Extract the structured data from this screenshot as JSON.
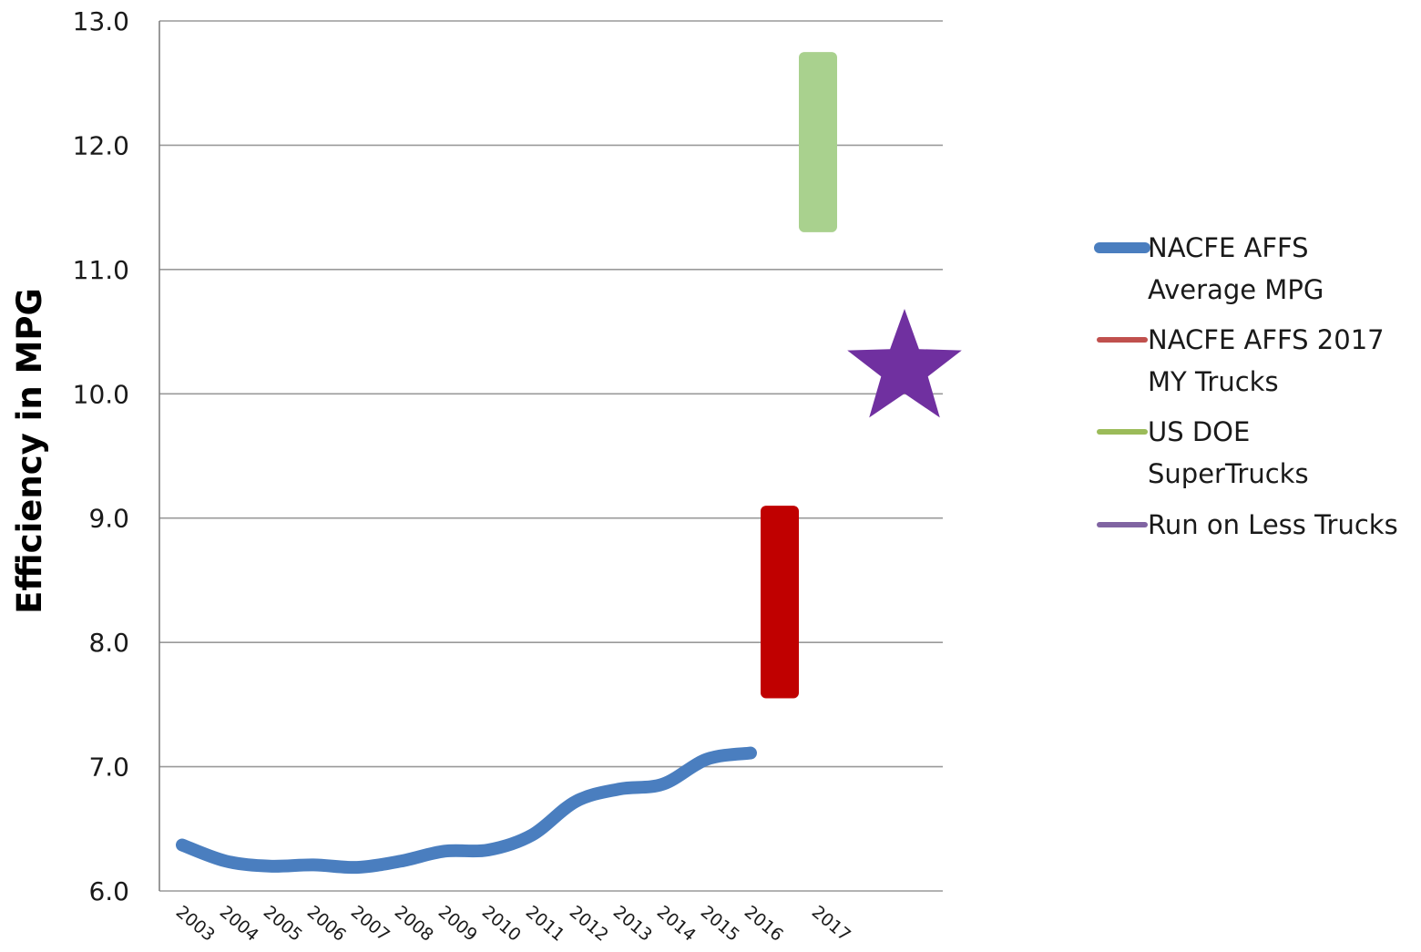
{
  "chart_data": {
    "type": "line",
    "title": "",
    "xlabel": "",
    "ylabel": "Efficiency in MPG",
    "ylim": [
      6.0,
      13.0
    ],
    "yticks": [
      "6.0",
      "7.0",
      "8.0",
      "9.0",
      "10.0",
      "11.0",
      "12.0",
      "13.0"
    ],
    "x_categories": [
      "2003",
      "2004",
      "2005",
      "2006",
      "2007",
      "2008",
      "2009",
      "2010",
      "2011",
      "2012",
      "2013",
      "2014",
      "2015",
      "2016",
      "2017"
    ],
    "grid": "horizontal",
    "legend_position": "right",
    "series": [
      {
        "name": "NACFE AFFS Average MPG",
        "type": "line",
        "color": "#4a7ebf",
        "x": [
          "2003",
          "2004",
          "2005",
          "2006",
          "2007",
          "2008",
          "2009",
          "2010",
          "2011",
          "2012",
          "2013",
          "2014",
          "2015",
          "2016"
        ],
        "values": [
          6.37,
          6.24,
          6.2,
          6.21,
          6.19,
          6.24,
          6.32,
          6.33,
          6.45,
          6.72,
          6.82,
          6.86,
          7.06,
          7.11
        ]
      },
      {
        "name": "NACFE AFFS 2017 MY Trucks",
        "type": "range",
        "color": "#c00000",
        "x": "2016-2017",
        "low": 7.55,
        "high": 9.1
      },
      {
        "name": "US DOE SuperTrucks",
        "type": "range",
        "color": "#a9d18e",
        "x": "2017",
        "low": 11.3,
        "high": 12.75
      },
      {
        "name": "Run on Less Trucks",
        "type": "marker",
        "marker": "star",
        "color": "#7030a0",
        "x": "after-2017",
        "value": 10.2
      }
    ],
    "legend": [
      {
        "lines": [
          "NACFE AFFS",
          "Average MPG"
        ],
        "color": "#4a7ebf"
      },
      {
        "lines": [
          "NACFE AFFS 2017",
          "MY Trucks"
        ],
        "color": "#c0504d"
      },
      {
        "lines": [
          "US DOE",
          "SuperTrucks"
        ],
        "color": "#9bbb59"
      },
      {
        "lines": [
          "Run on Less Trucks"
        ],
        "color": "#8064a2"
      }
    ]
  },
  "colors": {
    "grid": "#9a9a9a",
    "axis": "#808080"
  }
}
